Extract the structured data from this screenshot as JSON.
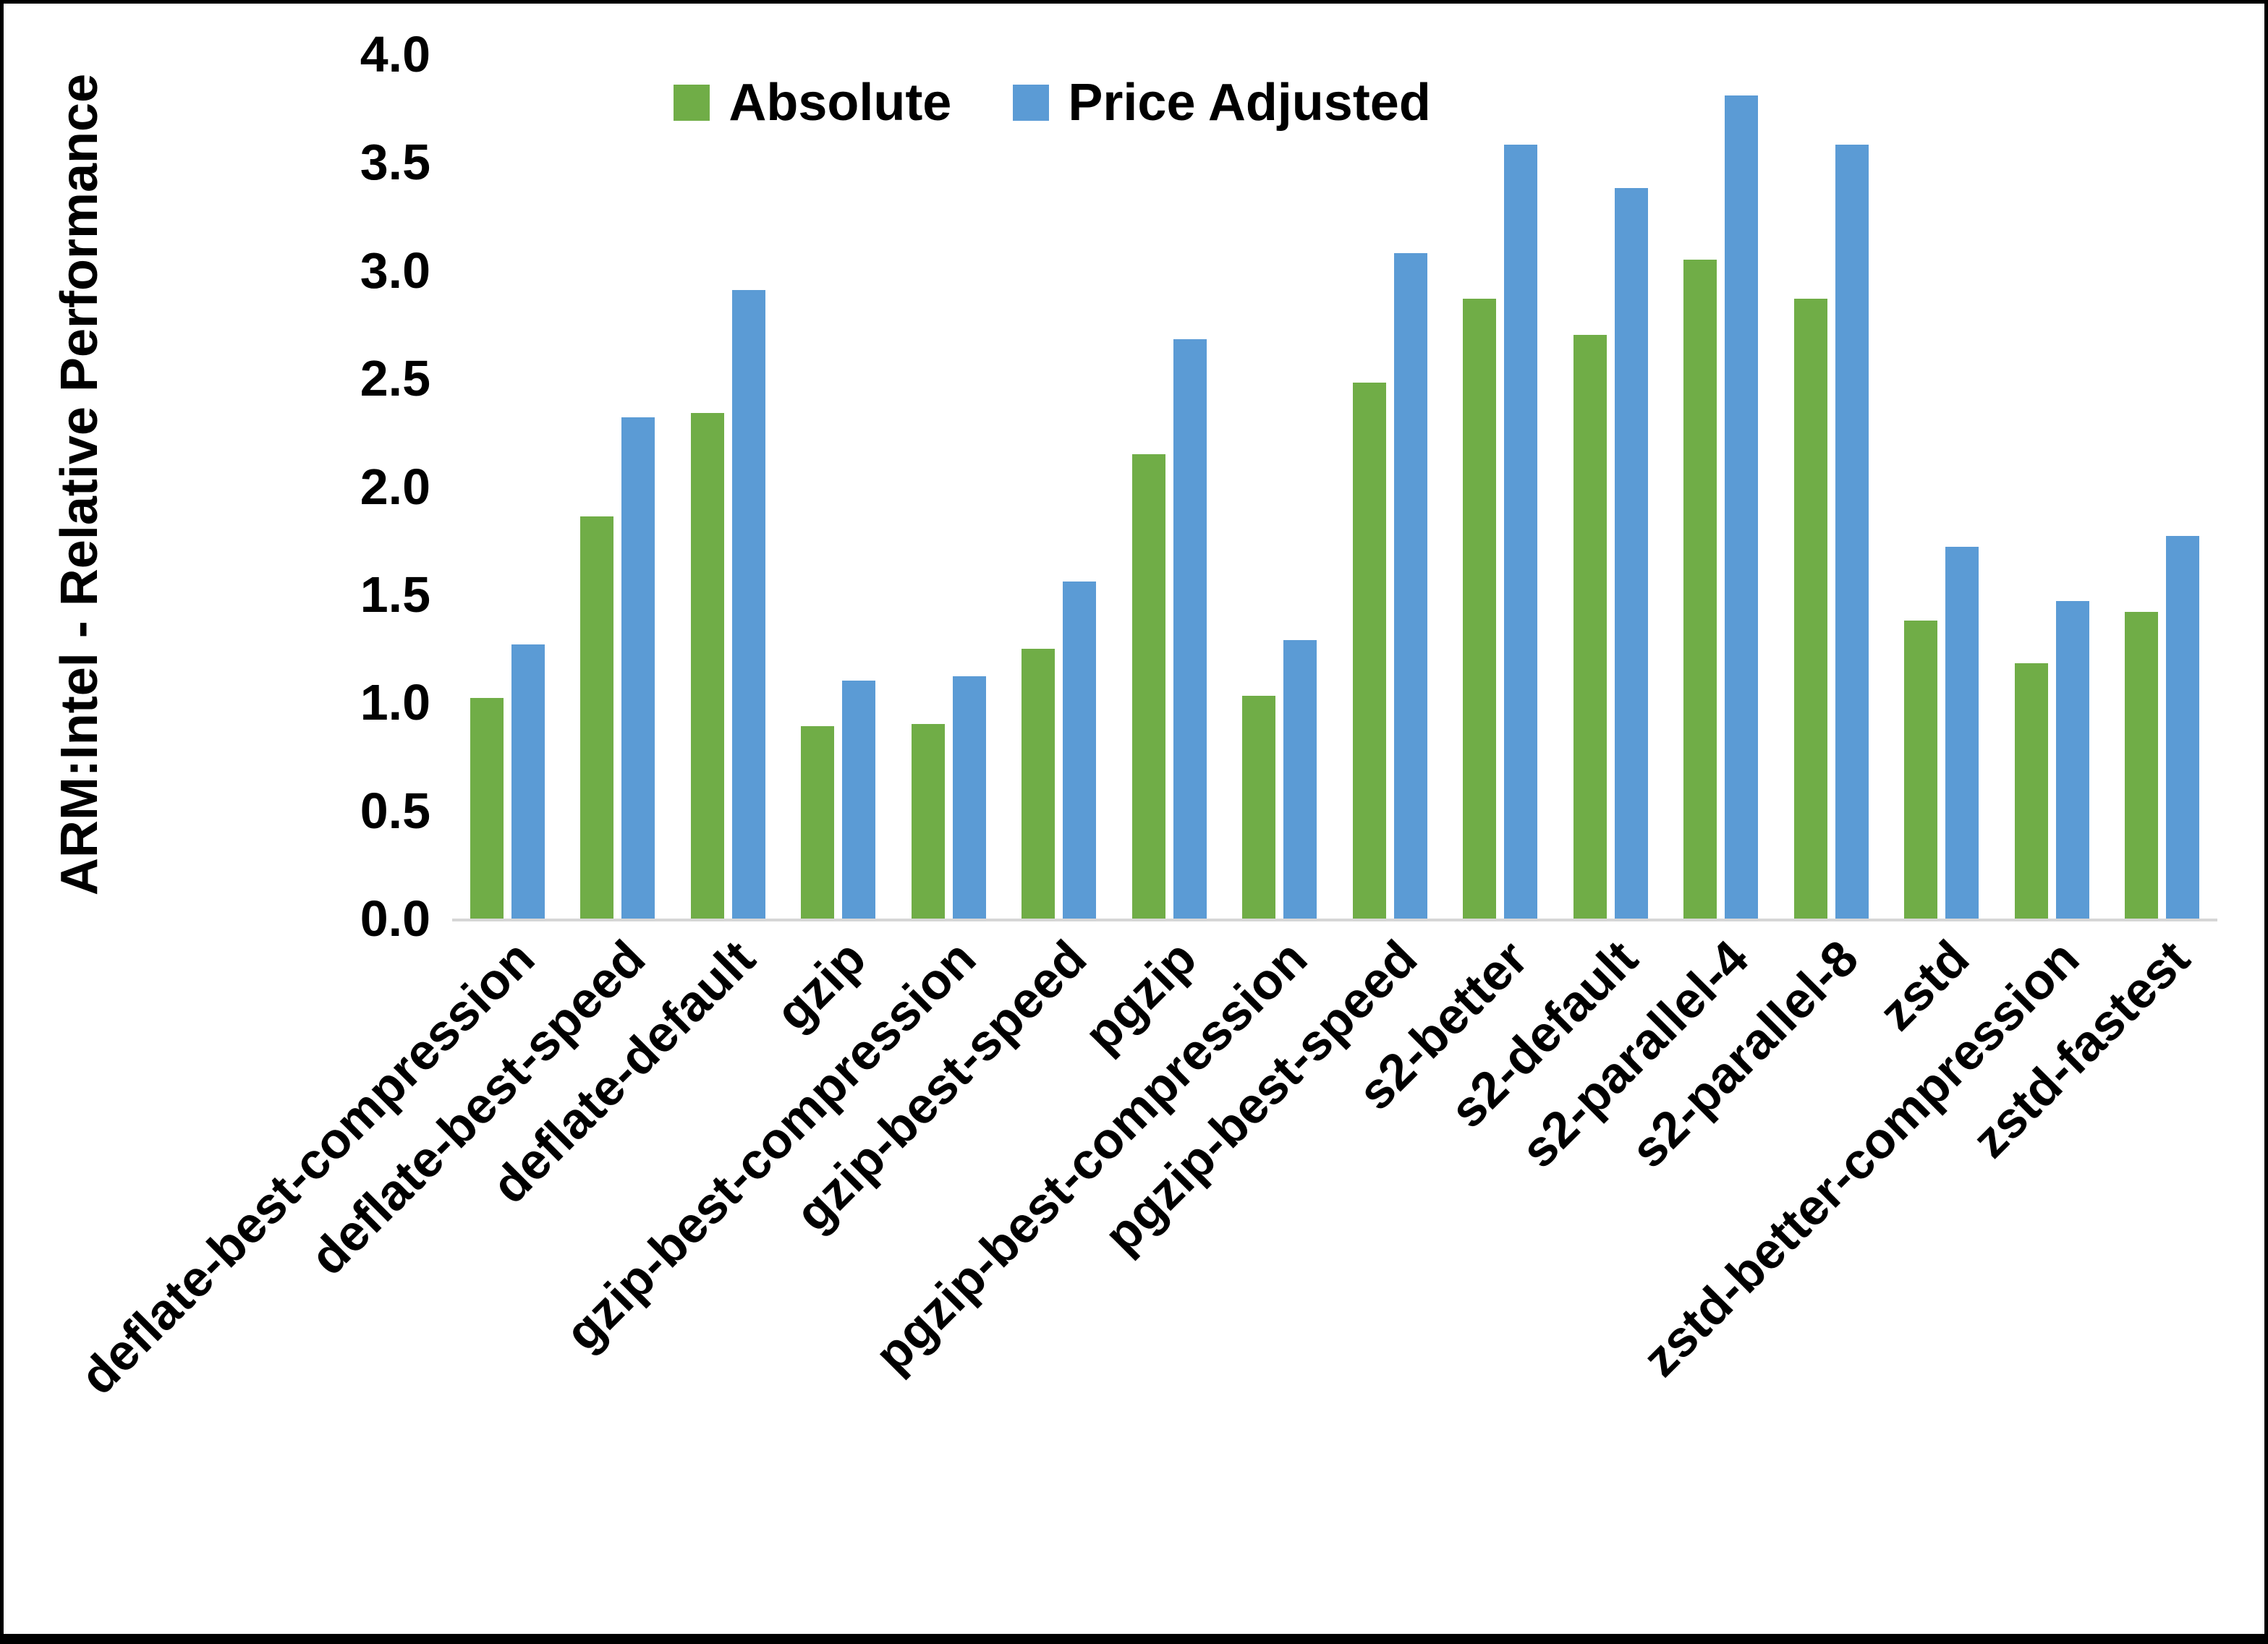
{
  "chart_data": {
    "type": "bar",
    "title": "",
    "xlabel": "",
    "ylabel": "ARM:Intel - Relative Performance",
    "ylim": [
      0,
      4.0
    ],
    "ytick_step": 0.5,
    "ytick_labels": [
      "0.0",
      "0.5",
      "1.0",
      "1.5",
      "2.0",
      "2.5",
      "3.0",
      "3.5",
      "4.0"
    ],
    "grid": false,
    "legend_position": "top-center",
    "categories": [
      "deflate-best-compression",
      "deflate-best-speed",
      "deflate-default",
      "gzip",
      "gzip-best-compression",
      "gzip-best-speed",
      "pgzip",
      "pgzip-best-compression",
      "pgzip-best-speed",
      "s2-better",
      "s2-default",
      "s2-parallel-4",
      "s2-parallel-8",
      "zstd",
      "zstd-better-compression",
      "zstd-fastest"
    ],
    "series": [
      {
        "name": "Absolute",
        "color": "#70AD47",
        "values": [
          1.02,
          1.86,
          2.34,
          0.89,
          0.9,
          1.25,
          2.15,
          1.03,
          2.48,
          2.87,
          2.7,
          3.05,
          2.87,
          1.38,
          1.18,
          1.42
        ]
      },
      {
        "name": "Price Adjusted",
        "color": "#5B9BD5",
        "values": [
          1.27,
          2.32,
          2.91,
          1.1,
          1.12,
          1.56,
          2.68,
          1.29,
          3.08,
          3.58,
          3.38,
          3.81,
          3.58,
          1.72,
          1.47,
          1.77
        ]
      }
    ]
  }
}
